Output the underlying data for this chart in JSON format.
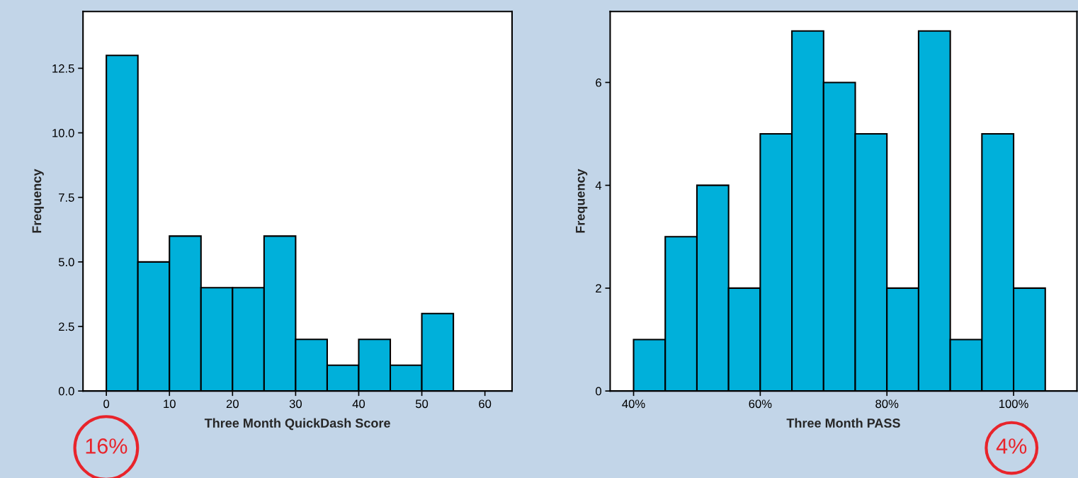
{
  "chart_data": [
    {
      "type": "histogram",
      "xlabel": "Three Month QuickDash Score",
      "ylabel": "Frequency",
      "bins": [
        0,
        5,
        10,
        15,
        20,
        25,
        30,
        35,
        40,
        45,
        50,
        55
      ],
      "values": [
        13,
        5,
        6,
        4,
        4,
        6,
        2,
        1,
        2,
        1,
        3
      ],
      "color": "#00b0da",
      "xlim": [
        -3.7,
        64.3
      ],
      "xticks": [
        0,
        10,
        20,
        30,
        40,
        50,
        60
      ],
      "ylim": [
        0,
        14.7
      ],
      "yticks": [
        {
          "value": 0,
          "label": "0.0"
        },
        2.5,
        {
          "value": 5,
          "label": "5.0"
        },
        7.5,
        {
          "value": 10,
          "label": "10.0"
        },
        12.5
      ],
      "annotations": [
        "16%"
      ]
    },
    {
      "type": "histogram",
      "xlabel": "Three Month PASS",
      "ylabel": "Frequency",
      "bins": [
        40,
        45,
        50,
        55,
        60,
        65,
        70,
        75,
        80,
        85,
        90,
        95,
        100,
        105
      ],
      "values": [
        1,
        3,
        4,
        2,
        5,
        7,
        6,
        5,
        2,
        7,
        1,
        5,
        2
      ],
      "color": "#00b0da",
      "xlim": [
        36.3,
        110
      ],
      "xticks": [
        {
          "value": 40,
          "label": "40%"
        },
        {
          "value": 60,
          "label": "60%"
        },
        {
          "value": 80,
          "label": "80%"
        },
        {
          "value": 100,
          "label": "100%"
        }
      ],
      "ylim": [
        0,
        7.38
      ],
      "yticks": [
        0,
        2,
        4,
        6
      ],
      "annotations": [
        "4%"
      ]
    }
  ]
}
